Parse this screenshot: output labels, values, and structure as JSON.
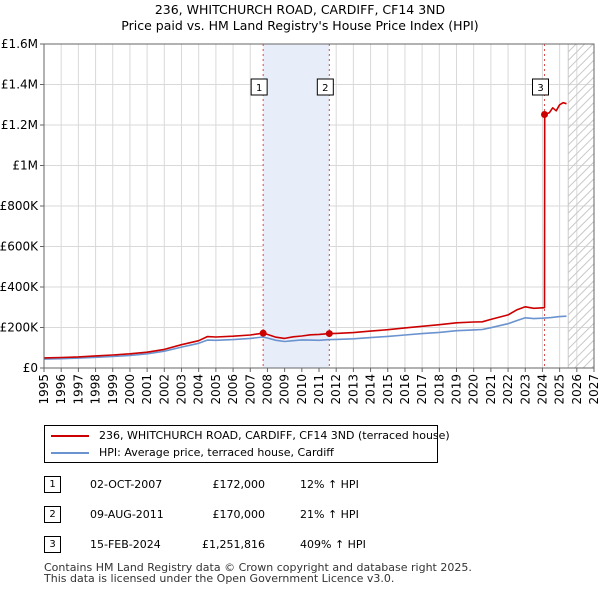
{
  "chart_data": {
    "type": "line",
    "title": "236, WHITCHURCH ROAD, CARDIFF, CF14 3ND",
    "subtitle": "Price paid vs. HM Land Registry's House Price Index (HPI)",
    "xlim": [
      1995,
      2027
    ],
    "ylim": [
      0,
      1600000
    ],
    "x_ticks": [
      "1995",
      "1996",
      "1997",
      "1998",
      "1999",
      "2000",
      "2001",
      "2002",
      "2003",
      "2004",
      "2005",
      "2006",
      "2007",
      "2008",
      "2009",
      "2010",
      "2011",
      "2012",
      "2013",
      "2014",
      "2015",
      "2016",
      "2017",
      "2018",
      "2019",
      "2020",
      "2021",
      "2022",
      "2023",
      "2024",
      "2025",
      "2026",
      "2027"
    ],
    "y_ticks": [
      {
        "value": 0,
        "label": "£0"
      },
      {
        "value": 200000,
        "label": "£200K"
      },
      {
        "value": 400000,
        "label": "£400K"
      },
      {
        "value": 600000,
        "label": "£600K"
      },
      {
        "value": 800000,
        "label": "£800K"
      },
      {
        "value": 1000000,
        "label": "£1M"
      },
      {
        "value": 1200000,
        "label": "£1.2M"
      },
      {
        "value": 1400000,
        "label": "£1.4M"
      },
      {
        "value": 1600000,
        "label": "£1.6M"
      }
    ],
    "shaded_ranges": [
      [
        2007.75,
        2011.6
      ]
    ],
    "future_start": 2025.5,
    "series": [
      {
        "name": "236, WHITCHURCH ROAD, CARDIFF, CF14 3ND (terraced house)",
        "color": "#cc0000",
        "x": [
          1995,
          1996,
          1997,
          1998,
          1999,
          2000,
          2001,
          2002,
          2003,
          2004,
          2004.5,
          2005,
          2006,
          2007,
          2007.75,
          2008,
          2008.5,
          2009,
          2009.5,
          2010,
          2010.5,
          2011,
          2011.6,
          2012,
          2013,
          2014,
          2015,
          2016,
          2017,
          2018,
          2019,
          2020,
          2020.5,
          2021,
          2022,
          2022.5,
          2023,
          2023.5,
          2024.12,
          2024.13,
          2024.4,
          2024.6,
          2024.8,
          2025,
          2025.2,
          2025.4
        ],
        "y": [
          50000,
          52000,
          55000,
          60000,
          64000,
          70000,
          78000,
          92000,
          115000,
          135000,
          155000,
          153000,
          157000,
          163000,
          172000,
          166000,
          152000,
          146000,
          154000,
          158000,
          164000,
          166000,
          170000,
          171000,
          175000,
          182000,
          189000,
          198000,
          206000,
          214000,
          223000,
          227000,
          228000,
          240000,
          262000,
          287000,
          302000,
          295000,
          298000,
          1251816,
          1260000,
          1285000,
          1270000,
          1300000,
          1310000,
          1305000
        ]
      },
      {
        "name": "HPI: Average price, terraced house, Cardiff",
        "color": "#6b93cf",
        "x": [
          1995,
          1996,
          1997,
          1998,
          1999,
          2000,
          2001,
          2002,
          2003,
          2004,
          2004.5,
          2005,
          2006,
          2007,
          2007.75,
          2008,
          2008.5,
          2009,
          2009.5,
          2010,
          2010.5,
          2011,
          2011.6,
          2012,
          2013,
          2014,
          2015,
          2016,
          2017,
          2018,
          2019,
          2020,
          2020.5,
          2021,
          2022,
          2022.5,
          2023,
          2023.5,
          2024,
          2024.5,
          2025,
          2025.4
        ],
        "y": [
          44000,
          46000,
          49000,
          53000,
          57000,
          62000,
          70000,
          83000,
          103000,
          122000,
          138000,
          137000,
          140000,
          146000,
          153000,
          148000,
          137000,
          131000,
          135000,
          139000,
          138000,
          137000,
          140000,
          141000,
          144000,
          150000,
          156000,
          163000,
          170000,
          176000,
          184000,
          188000,
          190000,
          199000,
          219000,
          234000,
          248000,
          244000,
          246000,
          249000,
          254000,
          256000
        ]
      }
    ],
    "markers": [
      {
        "id": "1",
        "x": 2007.75,
        "y": 172000
      },
      {
        "id": "2",
        "x": 2011.6,
        "y": 170000
      },
      {
        "id": "3",
        "x": 2024.12,
        "y": 1251816
      }
    ]
  },
  "legend": {
    "property_label": "236, WHITCHURCH ROAD, CARDIFF, CF14 3ND (terraced house)",
    "hpi_label": "HPI: Average price, terraced house, Cardiff"
  },
  "transactions": [
    {
      "id": "1",
      "date": "02-OCT-2007",
      "price": "£172,000",
      "hpi_change": "12% ↑ HPI"
    },
    {
      "id": "2",
      "date": "09-AUG-2011",
      "price": "£170,000",
      "hpi_change": "21% ↑ HPI"
    },
    {
      "id": "3",
      "date": "15-FEB-2024",
      "price": "£1,251,816",
      "hpi_change": "409% ↑ HPI"
    }
  ],
  "footer": {
    "line1": "Contains HM Land Registry data © Crown copyright and database right 2025.",
    "line2": "This data is licensed under the Open Government Licence v3.0."
  },
  "colors": {
    "property": "#cc0000",
    "hpi": "#6b93cf",
    "shade": "#e8eef9",
    "grid": "#d9d9d9"
  }
}
